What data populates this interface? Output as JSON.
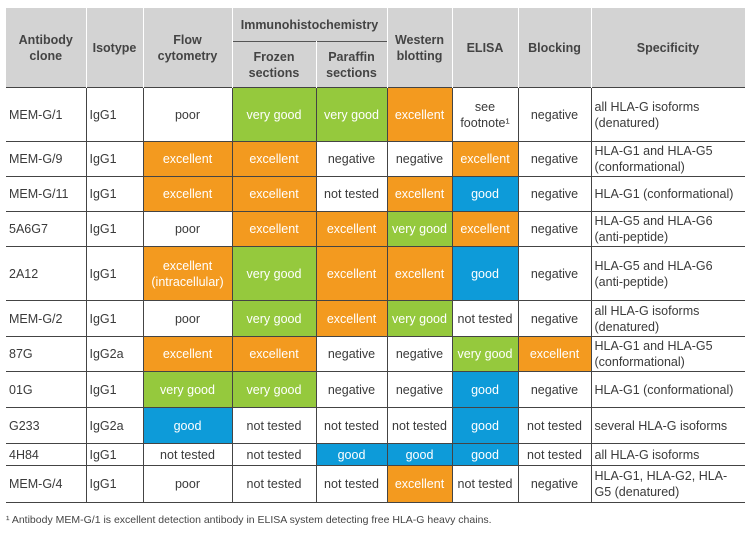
{
  "colors": {
    "green": "#95c93d",
    "orange": "#f39a1f",
    "blue": "#0d9bd9",
    "header": "#d3d3d3"
  },
  "headers": {
    "clone": "Antibody clone",
    "isotype": "Isotype",
    "flow": "Flow cytometry",
    "ihc": "Immunohistochemistry",
    "frozen": "Frozen sections",
    "paraffin": "Paraffin sections",
    "western": "Western blotting",
    "elisa": "ELISA",
    "blocking": "Blocking",
    "specificity": "Specificity"
  },
  "rows": [
    {
      "clone": "MEM-G/1",
      "isotype": "IgG1",
      "cells": [
        {
          "text": "poor"
        },
        {
          "text": "very good",
          "color": "green"
        },
        {
          "text": "very good",
          "color": "green"
        },
        {
          "text": "excellent",
          "color": "orange"
        },
        {
          "text": "see footnote¹"
        },
        {
          "text": "negative"
        }
      ],
      "specificity": "all HLA-G isoforms (denatured)",
      "h": 54
    },
    {
      "clone": "MEM-G/9",
      "isotype": "IgG1",
      "cells": [
        {
          "text": "excellent",
          "color": "orange"
        },
        {
          "text": "excellent",
          "color": "orange"
        },
        {
          "text": "negative"
        },
        {
          "text": "negative"
        },
        {
          "text": "excellent",
          "color": "orange"
        },
        {
          "text": "negative"
        }
      ],
      "specificity": "HLA-G1 and HLA-G5 (conformational)",
      "h": 35
    },
    {
      "clone": "MEM-G/11",
      "isotype": "IgG1",
      "cells": [
        {
          "text": "excellent",
          "color": "orange"
        },
        {
          "text": "excellent",
          "color": "orange"
        },
        {
          "text": "not tested"
        },
        {
          "text": "excellent",
          "color": "orange"
        },
        {
          "text": "good",
          "color": "blue"
        },
        {
          "text": "negative"
        }
      ],
      "specificity": "HLA-G1 (conformational)",
      "h": 35
    },
    {
      "clone": "5A6G7",
      "isotype": "IgG1",
      "cells": [
        {
          "text": "poor"
        },
        {
          "text": "excellent",
          "color": "orange"
        },
        {
          "text": "excellent",
          "color": "orange"
        },
        {
          "text": "very good",
          "color": "green"
        },
        {
          "text": "excellent",
          "color": "orange"
        },
        {
          "text": "negative"
        }
      ],
      "specificity": "HLA-G5 and HLA-G6 (anti-peptide)",
      "h": 35
    },
    {
      "clone": "2A12",
      "isotype": "IgG1",
      "cells": [
        {
          "text": "excellent (intracellular)",
          "color": "orange"
        },
        {
          "text": "very good",
          "color": "green"
        },
        {
          "text": "excellent",
          "color": "orange"
        },
        {
          "text": "excellent",
          "color": "orange"
        },
        {
          "text": "good",
          "color": "blue"
        },
        {
          "text": "negative"
        }
      ],
      "specificity": "HLA-G5 and HLA-G6 (anti-peptide)",
      "h": 54
    },
    {
      "clone": "MEM-G/2",
      "isotype": "IgG1",
      "cells": [
        {
          "text": "poor"
        },
        {
          "text": "very good",
          "color": "green"
        },
        {
          "text": "excellent",
          "color": "orange"
        },
        {
          "text": "very good",
          "color": "green"
        },
        {
          "text": "not tested"
        },
        {
          "text": "negative"
        }
      ],
      "specificity": "all HLA-G isoforms (denatured)",
      "h": 36
    },
    {
      "clone": "87G",
      "isotype": "IgG2a",
      "cells": [
        {
          "text": "excellent",
          "color": "orange"
        },
        {
          "text": "excellent",
          "color": "orange"
        },
        {
          "text": "negative"
        },
        {
          "text": "negative"
        },
        {
          "text": "very good",
          "color": "green"
        },
        {
          "text": "excellent",
          "color": "orange"
        }
      ],
      "specificity": "HLA-G1 and HLA-G5 (conformational)",
      "h": 35
    },
    {
      "clone": "01G",
      "isotype": "IgG1",
      "cells": [
        {
          "text": "very good",
          "color": "green"
        },
        {
          "text": "very good",
          "color": "green"
        },
        {
          "text": "negative"
        },
        {
          "text": "negative"
        },
        {
          "text": "good",
          "color": "blue"
        },
        {
          "text": "negative"
        }
      ],
      "specificity": "HLA-G1 (conformational)",
      "h": 36
    },
    {
      "clone": "G233",
      "isotype": "IgG2a",
      "cells": [
        {
          "text": "good",
          "color": "blue"
        },
        {
          "text": "not tested"
        },
        {
          "text": "not tested"
        },
        {
          "text": "not tested"
        },
        {
          "text": "good",
          "color": "blue"
        },
        {
          "text": "not tested"
        }
      ],
      "specificity": "several HLA-G isoforms",
      "h": 36
    },
    {
      "clone": "4H84",
      "isotype": "IgG1",
      "cells": [
        {
          "text": "not tested"
        },
        {
          "text": "not tested"
        },
        {
          "text": "good",
          "color": "blue"
        },
        {
          "text": "good",
          "color": "blue"
        },
        {
          "text": "good",
          "color": "blue"
        },
        {
          "text": "not tested"
        }
      ],
      "specificity": "all HLA-G isoforms",
      "h": 22
    },
    {
      "clone": "MEM-G/4",
      "isotype": "IgG1",
      "cells": [
        {
          "text": "poor"
        },
        {
          "text": "not tested"
        },
        {
          "text": "not tested"
        },
        {
          "text": "excellent",
          "color": "orange"
        },
        {
          "text": "not tested"
        },
        {
          "text": "negative"
        }
      ],
      "specificity": "HLA-G1, HLA-G2, HLA-G5 (denatured)",
      "h": 37
    }
  ],
  "footnote": "¹ Antibody MEM-G/1 is excellent detection antibody in ELISA system detecting free HLA-G heavy chains."
}
